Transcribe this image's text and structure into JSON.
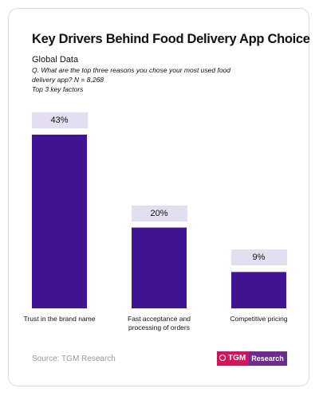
{
  "chart_data": {
    "type": "bar",
    "title": "Key Drivers Behind Food Delivery App Choice",
    "subtitle": "Global Data",
    "question": "Q. What are the top three reasons you chose your most used food delivery app? N = 8,268",
    "note": "Top 3 key factors",
    "categories": [
      "Trust in the brand name",
      "Fast acceptance and processing of orders",
      "Competitive pricing"
    ],
    "values": [
      43,
      20,
      9
    ],
    "value_labels": [
      "43%",
      "20%",
      "9%"
    ],
    "color": "#3f1592",
    "source": "Source: TGM Research",
    "logo": {
      "mark": "TGM",
      "text": "Research"
    }
  }
}
